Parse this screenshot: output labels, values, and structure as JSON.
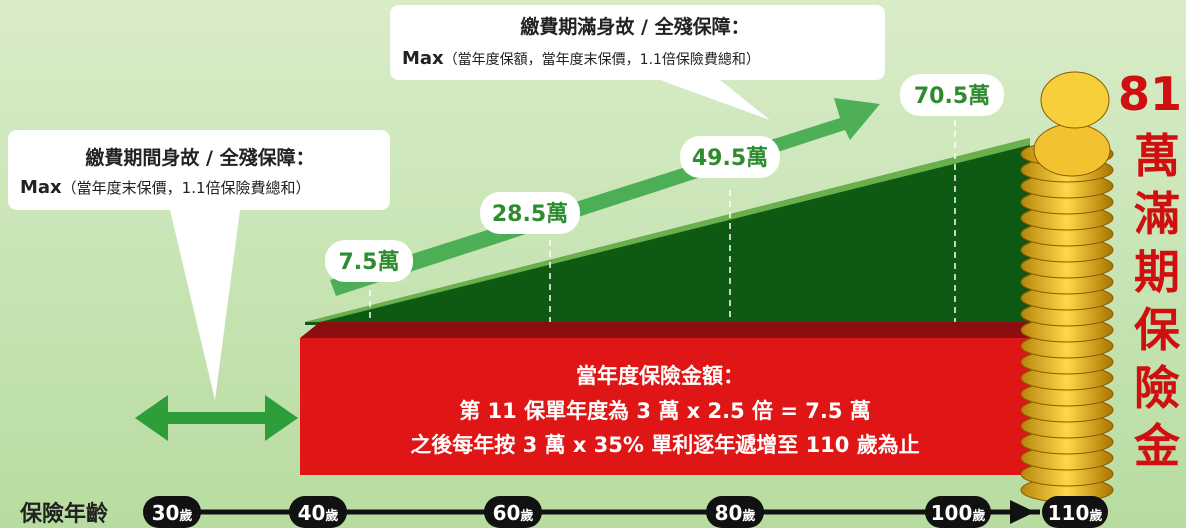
{
  "callout_left": {
    "title": "繳費期間身故 / 全殘保障：",
    "max": "Max",
    "detail": "（當年度末保價，1.1倍保險費總和）"
  },
  "callout_top": {
    "title": "繳費期滿身故 / 全殘保障：",
    "max": "Max",
    "detail": "（當年度保額，當年度末保價，1.1倍保險費總和）"
  },
  "amount_labels": [
    "7.5萬",
    "28.5萬",
    "49.5萬",
    "70.5萬"
  ],
  "red_box": {
    "lines": [
      "當年度保險金額：",
      "第 11 保單年度為 3 萬 x 2.5 倍 = 7.5 萬",
      "之後每年按 3 萬 x 35% 單利逐年遞增至 110 歲為止"
    ]
  },
  "maturity": {
    "amount": "81",
    "chars": [
      "萬",
      "滿",
      "期",
      "保",
      "險",
      "金"
    ]
  },
  "timeline": {
    "label": "保險年齡",
    "ages": [
      {
        "num": "30",
        "unit": "歲"
      },
      {
        "num": "40",
        "unit": "歲"
      },
      {
        "num": "60",
        "unit": "歲"
      },
      {
        "num": "80",
        "unit": "歲"
      },
      {
        "num": "100",
        "unit": "歲"
      },
      {
        "num": "110",
        "unit": "歲"
      }
    ]
  }
}
